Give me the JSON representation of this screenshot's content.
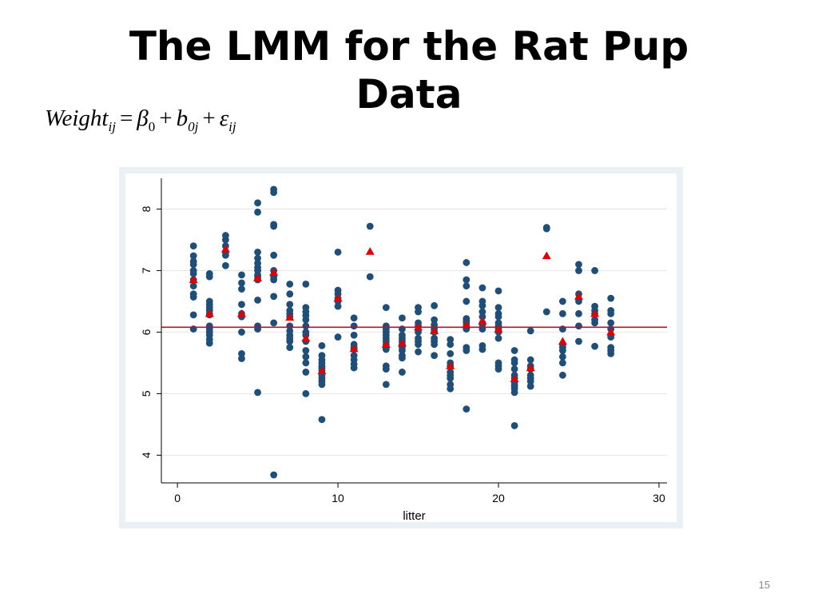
{
  "slide": {
    "title_line1": "The LMM for the Rat Pup",
    "title_line2": "Data",
    "page_number": "15"
  },
  "formula": {
    "lhs": "Weight",
    "lhs_sub": "ij",
    "eq": "=",
    "beta": "β",
    "beta_sub": "0",
    "plus1": "+",
    "b": "b",
    "b_sub": "0j",
    "plus2": "+",
    "eps": "ε",
    "eps_sub": "ij"
  },
  "colors": {
    "panel_background": "#eaf0f4",
    "plot_background": "#ffffff",
    "points": "#1f4e79",
    "litter_means": "#e00000",
    "overall_mean_line": "#a8172c",
    "gridlines": "#e6e6e6"
  },
  "chart_data": {
    "type": "scatter",
    "xlabel": "litter",
    "ylabel": "",
    "xlim": [
      -1,
      30.5
    ],
    "ylim": [
      3.55,
      8.5
    ],
    "xticks": [
      0,
      10,
      20,
      30
    ],
    "yticks": [
      4,
      5,
      6,
      7,
      8
    ],
    "grid": true,
    "legend": "none",
    "overall_mean": 6.08,
    "markers": {
      "points": "circle",
      "litter_means": "triangle"
    },
    "points": [
      [
        1,
        7.4
      ],
      [
        1,
        7.24
      ],
      [
        1,
        7.15
      ],
      [
        1,
        7.1
      ],
      [
        1,
        7.0
      ],
      [
        1,
        6.95
      ],
      [
        1,
        6.85
      ],
      [
        1,
        6.75
      ],
      [
        1,
        6.62
      ],
      [
        1,
        6.57
      ],
      [
        1,
        6.28
      ],
      [
        1,
        6.05
      ],
      [
        2,
        6.95
      ],
      [
        2,
        6.9
      ],
      [
        2,
        6.5
      ],
      [
        2,
        6.45
      ],
      [
        2,
        6.4
      ],
      [
        2,
        6.35
      ],
      [
        2,
        6.3
      ],
      [
        2,
        6.28
      ],
      [
        2,
        6.1
      ],
      [
        2,
        6.05
      ],
      [
        2,
        6.0
      ],
      [
        2,
        5.95
      ],
      [
        2,
        5.88
      ],
      [
        2,
        5.82
      ],
      [
        3,
        7.57
      ],
      [
        3,
        7.5
      ],
      [
        3,
        7.4
      ],
      [
        3,
        7.3
      ],
      [
        3,
        7.25
      ],
      [
        3,
        7.08
      ],
      [
        4,
        6.93
      ],
      [
        4,
        6.8
      ],
      [
        4,
        6.7
      ],
      [
        4,
        6.45
      ],
      [
        4,
        6.3
      ],
      [
        4,
        6.25
      ],
      [
        4,
        6.0
      ],
      [
        4,
        5.65
      ],
      [
        4,
        5.57
      ],
      [
        5,
        8.1
      ],
      [
        5,
        7.95
      ],
      [
        5,
        7.3
      ],
      [
        5,
        7.2
      ],
      [
        5,
        7.12
      ],
      [
        5,
        7.05
      ],
      [
        5,
        7.0
      ],
      [
        5,
        6.93
      ],
      [
        5,
        6.9
      ],
      [
        5,
        6.85
      ],
      [
        5,
        6.52
      ],
      [
        5,
        6.1
      ],
      [
        5,
        6.05
      ],
      [
        5,
        5.02
      ],
      [
        6,
        8.32
      ],
      [
        6,
        8.27
      ],
      [
        6,
        7.75
      ],
      [
        6,
        7.72
      ],
      [
        6,
        7.25
      ],
      [
        6,
        7.0
      ],
      [
        6,
        6.9
      ],
      [
        6,
        6.85
      ],
      [
        6,
        6.58
      ],
      [
        6,
        6.15
      ],
      [
        6,
        3.68
      ],
      [
        7,
        6.78
      ],
      [
        7,
        6.62
      ],
      [
        7,
        6.45
      ],
      [
        7,
        6.35
      ],
      [
        7,
        6.3
      ],
      [
        7,
        6.25
      ],
      [
        7,
        6.1
      ],
      [
        7,
        6.02
      ],
      [
        7,
        5.95
      ],
      [
        7,
        5.9
      ],
      [
        7,
        5.85
      ],
      [
        7,
        5.75
      ],
      [
        8,
        6.78
      ],
      [
        8,
        6.4
      ],
      [
        8,
        6.33
      ],
      [
        8,
        6.27
      ],
      [
        8,
        6.2
      ],
      [
        8,
        6.1
      ],
      [
        8,
        6.0
      ],
      [
        8,
        5.95
      ],
      [
        8,
        5.85
      ],
      [
        8,
        5.7
      ],
      [
        8,
        5.6
      ],
      [
        8,
        5.5
      ],
      [
        8,
        5.35
      ],
      [
        8,
        5.0
      ],
      [
        9,
        5.78
      ],
      [
        9,
        5.62
      ],
      [
        9,
        5.55
      ],
      [
        9,
        5.5
      ],
      [
        9,
        5.45
      ],
      [
        9,
        5.42
      ],
      [
        9,
        5.38
      ],
      [
        9,
        5.3
      ],
      [
        9,
        5.25
      ],
      [
        9,
        5.2
      ],
      [
        9,
        5.15
      ],
      [
        9,
        4.58
      ],
      [
        10,
        7.3
      ],
      [
        10,
        6.68
      ],
      [
        10,
        6.62
      ],
      [
        10,
        6.55
      ],
      [
        10,
        6.5
      ],
      [
        10,
        6.42
      ],
      [
        10,
        5.92
      ],
      [
        11,
        6.23
      ],
      [
        11,
        6.1
      ],
      [
        11,
        5.95
      ],
      [
        11,
        5.8
      ],
      [
        11,
        5.75
      ],
      [
        11,
        5.72
      ],
      [
        11,
        5.62
      ],
      [
        11,
        5.55
      ],
      [
        11,
        5.48
      ],
      [
        11,
        5.42
      ],
      [
        12,
        7.72
      ],
      [
        12,
        6.9
      ],
      [
        13,
        6.4
      ],
      [
        13,
        6.1
      ],
      [
        13,
        6.05
      ],
      [
        13,
        6.0
      ],
      [
        13,
        5.95
      ],
      [
        13,
        5.9
      ],
      [
        13,
        5.85
      ],
      [
        13,
        5.8
      ],
      [
        13,
        5.75
      ],
      [
        13,
        5.72
      ],
      [
        13,
        5.45
      ],
      [
        13,
        5.4
      ],
      [
        13,
        5.15
      ],
      [
        14,
        6.23
      ],
      [
        14,
        6.05
      ],
      [
        14,
        5.95
      ],
      [
        14,
        5.9
      ],
      [
        14,
        5.85
      ],
      [
        14,
        5.8
      ],
      [
        14,
        5.75
      ],
      [
        14,
        5.7
      ],
      [
        14,
        5.62
      ],
      [
        14,
        5.58
      ],
      [
        14,
        5.35
      ],
      [
        15,
        6.4
      ],
      [
        15,
        6.33
      ],
      [
        15,
        6.15
      ],
      [
        15,
        6.1
      ],
      [
        15,
        6.0
      ],
      [
        15,
        5.9
      ],
      [
        15,
        5.85
      ],
      [
        15,
        5.8
      ],
      [
        15,
        5.68
      ],
      [
        16,
        6.43
      ],
      [
        16,
        6.2
      ],
      [
        16,
        6.12
      ],
      [
        16,
        6.05
      ],
      [
        16,
        6.0
      ],
      [
        16,
        5.9
      ],
      [
        16,
        5.85
      ],
      [
        16,
        5.8
      ],
      [
        16,
        5.62
      ],
      [
        17,
        5.88
      ],
      [
        17,
        5.8
      ],
      [
        17,
        5.65
      ],
      [
        17,
        5.5
      ],
      [
        17,
        5.45
      ],
      [
        17,
        5.35
      ],
      [
        17,
        5.3
      ],
      [
        17,
        5.25
      ],
      [
        17,
        5.15
      ],
      [
        17,
        5.08
      ],
      [
        18,
        7.13
      ],
      [
        18,
        6.85
      ],
      [
        18,
        6.75
      ],
      [
        18,
        6.5
      ],
      [
        18,
        6.22
      ],
      [
        18,
        6.18
      ],
      [
        18,
        6.15
      ],
      [
        18,
        6.1
      ],
      [
        18,
        6.05
      ],
      [
        18,
        5.75
      ],
      [
        18,
        5.7
      ],
      [
        18,
        4.75
      ],
      [
        19,
        6.72
      ],
      [
        19,
        6.5
      ],
      [
        19,
        6.43
      ],
      [
        19,
        6.33
      ],
      [
        19,
        6.25
      ],
      [
        19,
        6.15
      ],
      [
        19,
        6.12
      ],
      [
        19,
        6.05
      ],
      [
        19,
        5.78
      ],
      [
        19,
        5.72
      ],
      [
        20,
        6.67
      ],
      [
        20,
        6.4
      ],
      [
        20,
        6.3
      ],
      [
        20,
        6.25
      ],
      [
        20,
        6.15
      ],
      [
        20,
        6.1
      ],
      [
        20,
        6.05
      ],
      [
        20,
        6.0
      ],
      [
        20,
        5.9
      ],
      [
        20,
        5.5
      ],
      [
        20,
        5.45
      ],
      [
        20,
        5.4
      ],
      [
        21,
        5.7
      ],
      [
        21,
        5.55
      ],
      [
        21,
        5.5
      ],
      [
        21,
        5.4
      ],
      [
        21,
        5.3
      ],
      [
        21,
        5.25
      ],
      [
        21,
        5.2
      ],
      [
        21,
        5.15
      ],
      [
        21,
        5.12
      ],
      [
        21,
        5.08
      ],
      [
        21,
        5.02
      ],
      [
        21,
        4.48
      ],
      [
        22,
        6.02
      ],
      [
        22,
        5.55
      ],
      [
        22,
        5.45
      ],
      [
        22,
        5.4
      ],
      [
        22,
        5.3
      ],
      [
        22,
        5.25
      ],
      [
        22,
        5.2
      ],
      [
        22,
        5.12
      ],
      [
        23,
        7.7
      ],
      [
        23,
        7.68
      ],
      [
        23,
        6.33
      ],
      [
        24,
        6.5
      ],
      [
        24,
        6.3
      ],
      [
        24,
        6.05
      ],
      [
        24,
        5.8
      ],
      [
        24,
        5.75
      ],
      [
        24,
        5.7
      ],
      [
        24,
        5.6
      ],
      [
        24,
        5.5
      ],
      [
        24,
        5.3
      ],
      [
        25,
        7.1
      ],
      [
        25,
        7.0
      ],
      [
        25,
        6.62
      ],
      [
        25,
        6.5
      ],
      [
        25,
        6.3
      ],
      [
        25,
        6.1
      ],
      [
        25,
        5.85
      ],
      [
        26,
        7.0
      ],
      [
        26,
        6.42
      ],
      [
        26,
        6.35
      ],
      [
        26,
        6.3
      ],
      [
        26,
        6.2
      ],
      [
        26,
        6.15
      ],
      [
        26,
        5.77
      ],
      [
        27,
        6.55
      ],
      [
        27,
        6.35
      ],
      [
        27,
        6.3
      ],
      [
        27,
        6.15
      ],
      [
        27,
        6.05
      ],
      [
        27,
        5.92
      ],
      [
        27,
        5.75
      ],
      [
        27,
        5.7
      ],
      [
        27,
        5.65
      ]
    ],
    "litter_means": [
      [
        1,
        6.85
      ],
      [
        2,
        6.3
      ],
      [
        3,
        7.35
      ],
      [
        4,
        6.3
      ],
      [
        5,
        6.88
      ],
      [
        6,
        6.97
      ],
      [
        7,
        6.24
      ],
      [
        8,
        5.9
      ],
      [
        9,
        5.37
      ],
      [
        10,
        6.55
      ],
      [
        11,
        5.73
      ],
      [
        12,
        7.31
      ],
      [
        13,
        5.8
      ],
      [
        14,
        5.82
      ],
      [
        15,
        6.08
      ],
      [
        16,
        6.02
      ],
      [
        17,
        5.45
      ],
      [
        18,
        6.12
      ],
      [
        19,
        6.18
      ],
      [
        20,
        6.05
      ],
      [
        21,
        5.24
      ],
      [
        22,
        5.42
      ],
      [
        23,
        7.24
      ],
      [
        24,
        5.85
      ],
      [
        25,
        6.58
      ],
      [
        26,
        6.3
      ],
      [
        27,
        6.0
      ]
    ]
  }
}
